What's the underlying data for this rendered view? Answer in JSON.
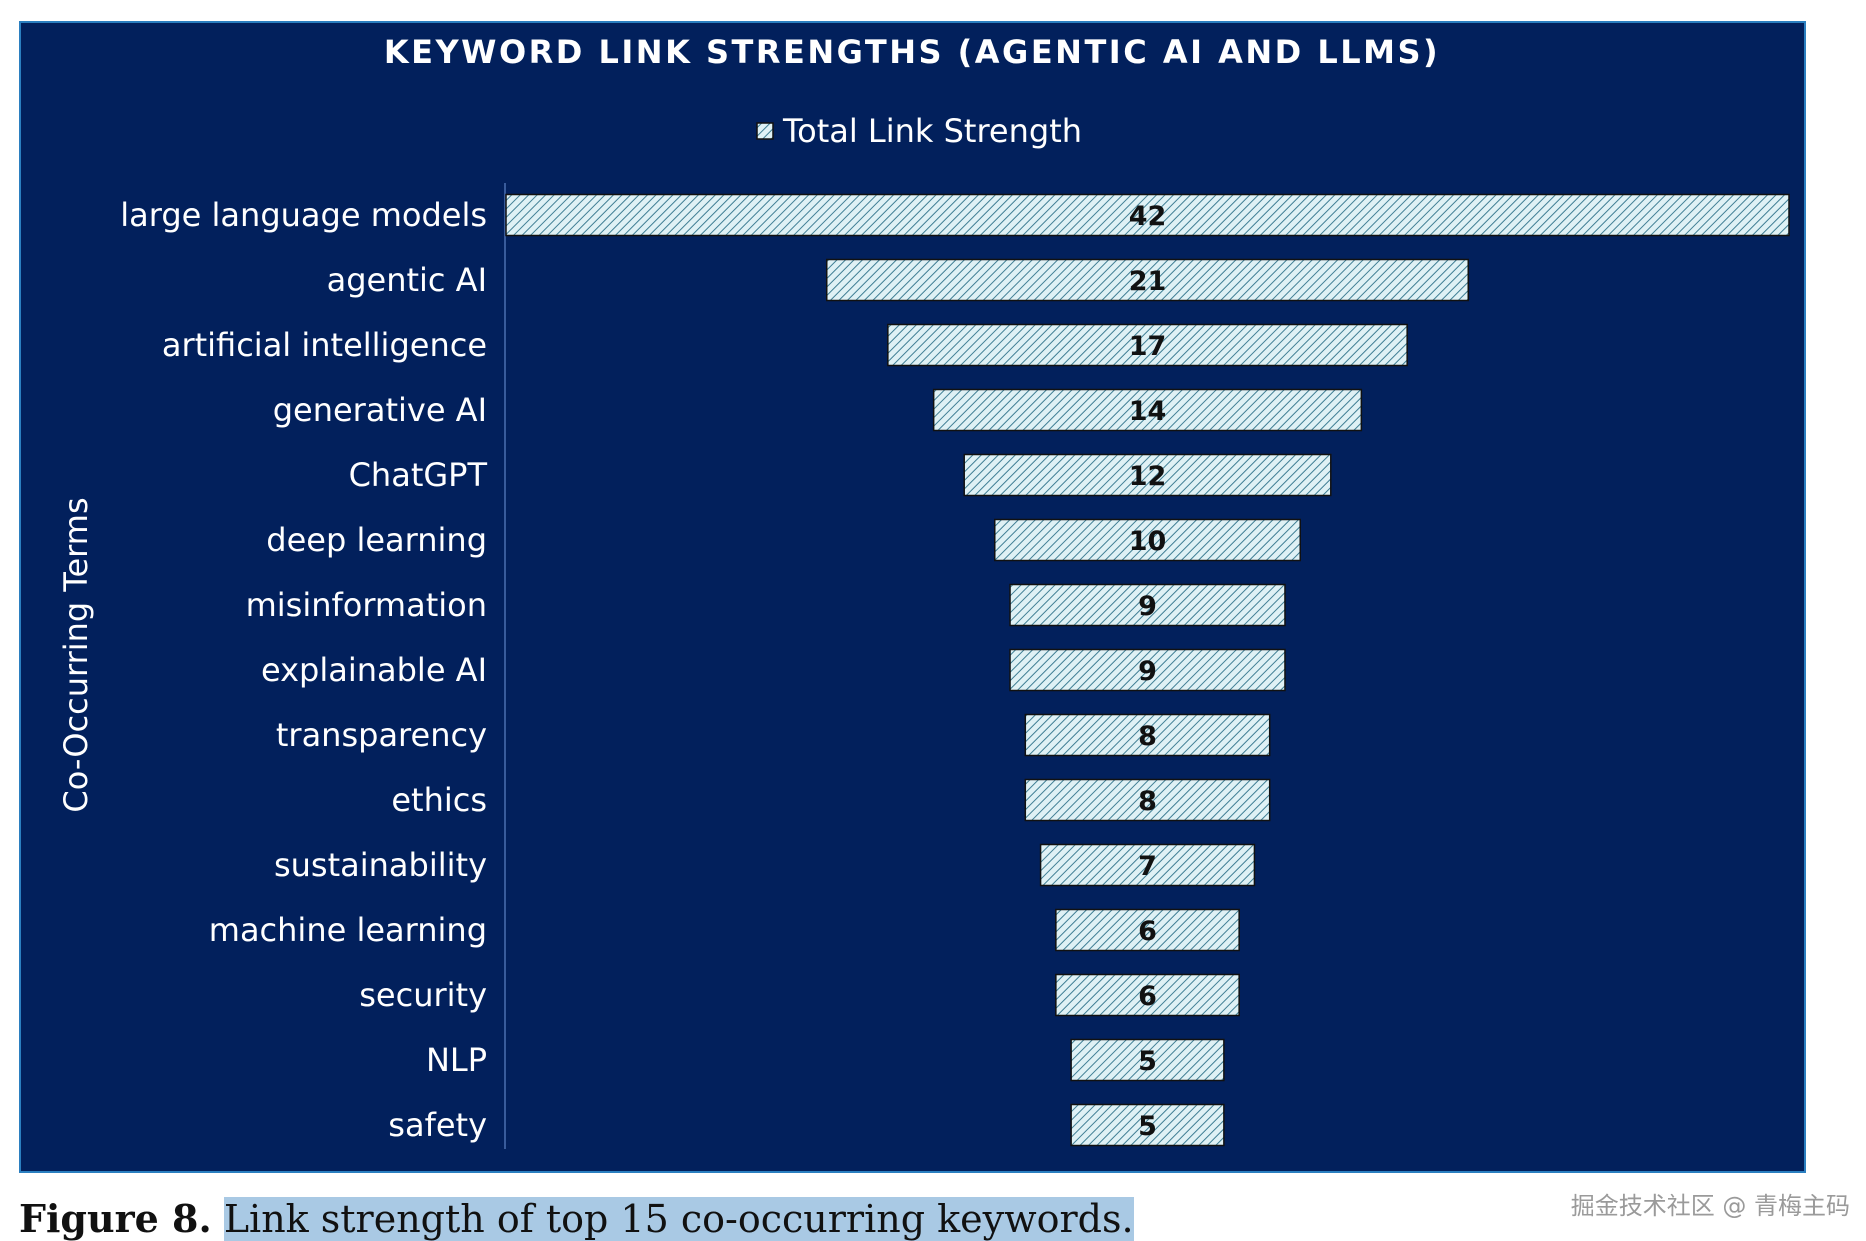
{
  "chart_data": {
    "type": "bar",
    "orientation": "horizontal-centered",
    "title": "KEYWORD LINK STRENGTHS (AGENTIC AI AND LLMS)",
    "ylabel": "Co-Occurring Terms",
    "legend": {
      "label": "Total Link Strength",
      "position": "top-center"
    },
    "categories": [
      "large language models",
      "agentic AI",
      "artificial intelligence",
      "generative AI",
      "ChatGPT",
      "deep learning",
      "misinformation",
      "explainable AI",
      "transparency",
      "ethics",
      "sustainability",
      "machine learning",
      "security",
      "NLP",
      "safety"
    ],
    "series": [
      {
        "name": "Total Link Strength",
        "values": [
          42,
          21,
          17,
          14,
          12,
          10,
          9,
          9,
          8,
          8,
          7,
          6,
          6,
          5,
          5
        ]
      }
    ],
    "data_labels": true,
    "grid": false,
    "colors": {
      "panel": "#02205c",
      "bar_fill": "#dff1f5",
      "bar_hatch": "#3f7e94",
      "bar_edge": "#111111",
      "text": "#ffffff"
    }
  },
  "caption": {
    "figure_number": "Figure 8.",
    "text": "Link strength of top 15 co-occurring keywords."
  },
  "watermark": "掘金技术社区 @ 青梅主码"
}
